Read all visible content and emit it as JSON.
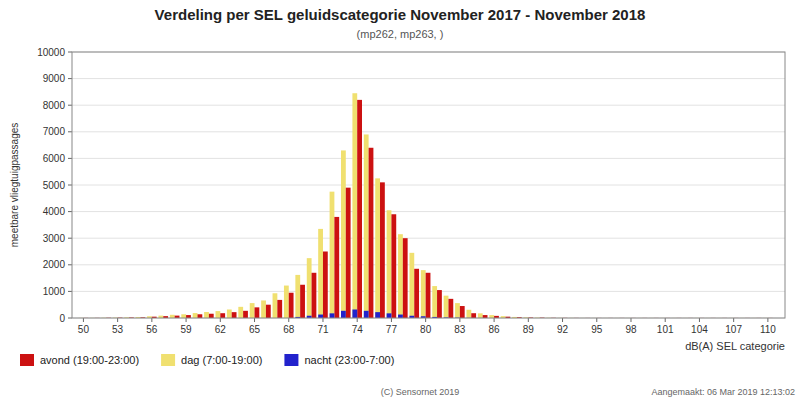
{
  "chart_data": {
    "type": "bar",
    "title": "Verdeling per SEL geluidscategorie November 2017 - November 2018",
    "subtitle": "(mp262, mp263, )",
    "x_label": "dB(A) SEL categorie",
    "y_label": "meetbare vliegtuigpassages",
    "annotations": [
      "(C) Sensornet 2019",
      "Aangemaakt: 06 Mar 2019 12:13:02"
    ],
    "x": [
      50,
      51,
      52,
      53,
      54,
      55,
      56,
      57,
      58,
      59,
      60,
      61,
      62,
      63,
      64,
      65,
      66,
      67,
      68,
      69,
      70,
      71,
      72,
      73,
      74,
      75,
      76,
      77,
      78,
      79,
      80,
      81,
      82,
      83,
      84,
      85,
      86,
      87,
      88,
      89,
      90,
      91,
      92,
      93,
      94,
      95,
      96,
      97,
      98,
      99,
      100,
      101,
      102,
      103,
      104,
      105,
      106,
      107,
      108,
      109,
      110
    ],
    "series": [
      {
        "name": "avond (19:00-23:00)",
        "color": "#cc1111",
        "values": [
          5,
          5,
          10,
          15,
          20,
          25,
          50,
          70,
          90,
          110,
          140,
          160,
          180,
          220,
          270,
          400,
          500,
          680,
          950,
          1250,
          1700,
          2500,
          3800,
          4900,
          8200,
          6400,
          5100,
          3900,
          3000,
          1850,
          1700,
          1050,
          720,
          450,
          180,
          110,
          80,
          50,
          30,
          20,
          15,
          8,
          6,
          4,
          3,
          3,
          3,
          3,
          3,
          3,
          3,
          3,
          3,
          3,
          3,
          3,
          3,
          3,
          3,
          3,
          3
        ]
      },
      {
        "name": "dag (7:00-19:00)",
        "color": "#f0e070",
        "values": [
          5,
          5,
          10,
          15,
          25,
          35,
          65,
          90,
          120,
          140,
          185,
          225,
          260,
          320,
          420,
          560,
          660,
          930,
          1220,
          1620,
          2250,
          3350,
          4750,
          6300,
          8450,
          6900,
          5250,
          4050,
          3150,
          2450,
          1800,
          1200,
          840,
          560,
          310,
          175,
          110,
          70,
          40,
          25,
          15,
          10,
          6,
          5,
          3,
          3,
          3,
          3,
          3,
          3,
          3,
          3,
          3,
          3,
          3,
          3,
          3,
          3,
          3,
          3,
          3
        ]
      },
      {
        "name": "nacht (23:00-7:00)",
        "color": "#2222cc",
        "values": [
          0,
          0,
          0,
          0,
          0,
          0,
          0,
          0,
          0,
          0,
          0,
          0,
          0,
          0,
          0,
          0,
          0,
          0,
          0,
          40,
          85,
          130,
          175,
          270,
          320,
          270,
          220,
          175,
          130,
          85,
          65,
          40,
          22,
          15,
          7,
          3,
          0,
          0,
          0,
          0,
          0,
          0,
          0,
          0,
          0,
          0,
          0,
          0,
          0,
          0,
          0,
          0,
          0,
          0,
          0,
          0,
          0,
          0,
          0,
          0,
          0
        ]
      }
    ],
    "xlim": [
      49.0,
      111.5
    ],
    "ylim": [
      0,
      10000
    ],
    "xticks": [
      50,
      53,
      56,
      59,
      62,
      65,
      68,
      71,
      74,
      77,
      80,
      83,
      86,
      89,
      92,
      95,
      98,
      101,
      104,
      107,
      110
    ],
    "yticks": [
      0,
      1000,
      2000,
      3000,
      4000,
      5000,
      6000,
      7000,
      8000,
      9000,
      10000
    ],
    "grid": true,
    "legend": "bottom"
  }
}
